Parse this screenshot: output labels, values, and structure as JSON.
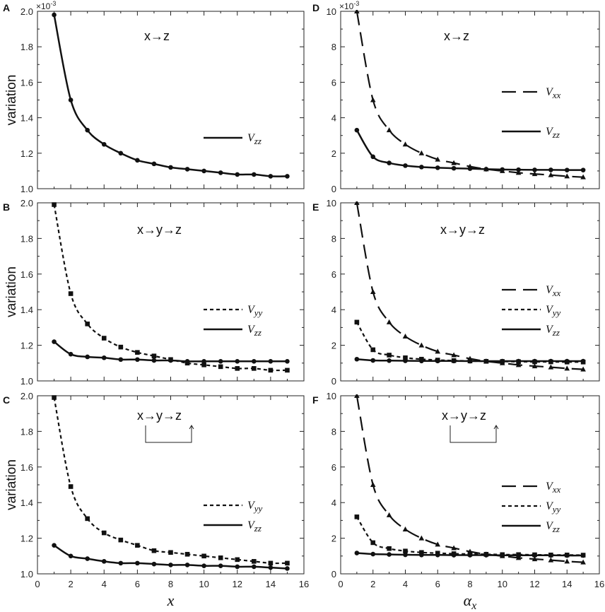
{
  "chart_data": [
    {
      "id": "A",
      "type": "line",
      "panel_label": "A",
      "xlabel": "",
      "ylabel": "variation",
      "xlim": [
        0,
        16
      ],
      "ylim": [
        1.0,
        2.0
      ],
      "xticks": [],
      "yticks": [
        1.0,
        1.2,
        1.4,
        1.6,
        1.8,
        2.0
      ],
      "ytick_labels": [
        "1.0",
        "1.2",
        "1.4",
        "1.6",
        "1.8",
        "2.0"
      ],
      "multiplier": "×10-3",
      "annotation": "x→z",
      "bracket": false,
      "x": [
        1,
        2,
        3,
        4,
        5,
        6,
        7,
        8,
        9,
        10,
        11,
        12,
        13,
        14,
        15
      ],
      "series": [
        {
          "name": "V",
          "sub": "zz",
          "style": "solid",
          "marker": "circle",
          "values": [
            1.98,
            1.5,
            1.33,
            1.25,
            1.2,
            1.16,
            1.14,
            1.12,
            1.11,
            1.1,
            1.09,
            1.08,
            1.08,
            1.07,
            1.07
          ]
        }
      ]
    },
    {
      "id": "D",
      "type": "line",
      "panel_label": "D",
      "xlabel": "",
      "ylabel": "",
      "xlim": [
        0,
        16
      ],
      "ylim": [
        0,
        10
      ],
      "xticks": [],
      "yticks": [
        0,
        2,
        4,
        6,
        8,
        10
      ],
      "ytick_labels": [
        "0",
        "2",
        "4",
        "6",
        "8",
        "10"
      ],
      "multiplier": "×10-3",
      "annotation": "x→z",
      "bracket": false,
      "x": [
        1,
        2,
        3,
        4,
        5,
        6,
        7,
        8,
        9,
        10,
        11,
        12,
        13,
        14,
        15
      ],
      "series": [
        {
          "name": "V",
          "sub": "xx",
          "style": "dashed",
          "marker": "triangle",
          "values": [
            10.0,
            5.0,
            3.3,
            2.5,
            2.0,
            1.65,
            1.45,
            1.25,
            1.1,
            1.0,
            0.9,
            0.83,
            0.77,
            0.7,
            0.65
          ]
        },
        {
          "name": "V",
          "sub": "zz",
          "style": "solid",
          "marker": "circle",
          "values": [
            3.3,
            1.8,
            1.45,
            1.3,
            1.22,
            1.18,
            1.15,
            1.13,
            1.1,
            1.08,
            1.07,
            1.06,
            1.06,
            1.05,
            1.05
          ]
        }
      ]
    },
    {
      "id": "B",
      "type": "line",
      "panel_label": "B",
      "xlabel": "",
      "ylabel": "variation",
      "xlim": [
        0,
        16
      ],
      "ylim": [
        1.0,
        2.0
      ],
      "xticks": [],
      "yticks": [
        1.0,
        1.2,
        1.4,
        1.6,
        1.8,
        2.0
      ],
      "ytick_labels": [
        "1.0",
        "1.2",
        "1.4",
        "1.6",
        "1.8",
        "2.0"
      ],
      "multiplier": "",
      "annotation": "x→y→z",
      "bracket": false,
      "x": [
        1,
        2,
        3,
        4,
        5,
        6,
        7,
        8,
        9,
        10,
        11,
        12,
        13,
        14,
        15
      ],
      "series": [
        {
          "name": "V",
          "sub": "yy",
          "style": "dotted",
          "marker": "square",
          "values": [
            1.99,
            1.49,
            1.32,
            1.24,
            1.19,
            1.16,
            1.14,
            1.12,
            1.1,
            1.09,
            1.08,
            1.07,
            1.07,
            1.06,
            1.06
          ]
        },
        {
          "name": "V",
          "sub": "zz",
          "style": "solid",
          "marker": "circle",
          "values": [
            1.22,
            1.15,
            1.135,
            1.13,
            1.12,
            1.12,
            1.115,
            1.115,
            1.11,
            1.11,
            1.11,
            1.11,
            1.11,
            1.11,
            1.11
          ]
        }
      ]
    },
    {
      "id": "E",
      "type": "line",
      "panel_label": "E",
      "xlabel": "",
      "ylabel": "",
      "xlim": [
        0,
        16
      ],
      "ylim": [
        0,
        10
      ],
      "xticks": [],
      "yticks": [
        0,
        2,
        4,
        6,
        8,
        10
      ],
      "ytick_labels": [
        "0",
        "2",
        "4",
        "6",
        "8",
        "10"
      ],
      "multiplier": "",
      "annotation": "x→y→z",
      "bracket": false,
      "x": [
        1,
        2,
        3,
        4,
        5,
        6,
        7,
        8,
        9,
        10,
        11,
        12,
        13,
        14,
        15
      ],
      "series": [
        {
          "name": "V",
          "sub": "xx",
          "style": "dashed",
          "marker": "triangle",
          "values": [
            10.0,
            5.0,
            3.3,
            2.5,
            2.0,
            1.65,
            1.45,
            1.25,
            1.1,
            1.0,
            0.9,
            0.83,
            0.77,
            0.7,
            0.65
          ]
        },
        {
          "name": "V",
          "sub": "yy",
          "style": "dotted",
          "marker": "square",
          "values": [
            3.3,
            1.75,
            1.45,
            1.3,
            1.22,
            1.17,
            1.14,
            1.12,
            1.1,
            1.09,
            1.08,
            1.07,
            1.07,
            1.06,
            1.06
          ]
        },
        {
          "name": "V",
          "sub": "zz",
          "style": "solid",
          "marker": "circle",
          "values": [
            1.22,
            1.15,
            1.14,
            1.13,
            1.12,
            1.12,
            1.12,
            1.11,
            1.11,
            1.11,
            1.11,
            1.11,
            1.11,
            1.11,
            1.11
          ]
        }
      ]
    },
    {
      "id": "C",
      "type": "line",
      "panel_label": "C",
      "xlabel": "x",
      "ylabel": "variation",
      "xlim": [
        0,
        16
      ],
      "ylim": [
        1.0,
        2.0
      ],
      "xticks": [
        0,
        2,
        4,
        6,
        8,
        10,
        12,
        14,
        16
      ],
      "yticks": [
        1.0,
        1.2,
        1.4,
        1.6,
        1.8,
        2.0
      ],
      "ytick_labels": [
        "1.0",
        "1.2",
        "1.4",
        "1.6",
        "1.8",
        "2.0"
      ],
      "multiplier": "",
      "annotation": "x→y→z",
      "bracket": true,
      "x": [
        1,
        2,
        3,
        4,
        5,
        6,
        7,
        8,
        9,
        10,
        11,
        12,
        13,
        14,
        15
      ],
      "series": [
        {
          "name": "V",
          "sub": "yy",
          "style": "dotted",
          "marker": "square",
          "values": [
            1.99,
            1.49,
            1.31,
            1.23,
            1.19,
            1.16,
            1.13,
            1.12,
            1.11,
            1.1,
            1.09,
            1.08,
            1.07,
            1.06,
            1.06
          ]
        },
        {
          "name": "V",
          "sub": "zz",
          "style": "solid",
          "marker": "circle",
          "values": [
            1.16,
            1.1,
            1.085,
            1.07,
            1.06,
            1.06,
            1.055,
            1.05,
            1.05,
            1.045,
            1.045,
            1.04,
            1.04,
            1.035,
            1.03
          ]
        }
      ]
    },
    {
      "id": "F",
      "type": "line",
      "panel_label": "F",
      "xlabel": "α",
      "xlabel_sub": "x",
      "ylabel": "",
      "xlim": [
        0,
        16
      ],
      "ylim": [
        0,
        10
      ],
      "xticks": [
        0,
        2,
        4,
        6,
        8,
        10,
        12,
        14,
        16
      ],
      "yticks": [
        0,
        2,
        4,
        6,
        8,
        10
      ],
      "ytick_labels": [
        "0",
        "2",
        "4",
        "6",
        "8",
        "10"
      ],
      "multiplier": "",
      "annotation": "x→y→z",
      "bracket": true,
      "x": [
        1,
        2,
        3,
        4,
        5,
        6,
        7,
        8,
        9,
        10,
        11,
        12,
        13,
        14,
        15
      ],
      "series": [
        {
          "name": "V",
          "sub": "xx",
          "style": "dashed",
          "marker": "triangle",
          "values": [
            10.0,
            5.0,
            3.3,
            2.5,
            2.0,
            1.65,
            1.45,
            1.25,
            1.1,
            1.0,
            0.9,
            0.83,
            0.77,
            0.7,
            0.65
          ]
        },
        {
          "name": "V",
          "sub": "yy",
          "style": "dotted",
          "marker": "square",
          "values": [
            3.2,
            1.75,
            1.42,
            1.28,
            1.2,
            1.16,
            1.13,
            1.11,
            1.1,
            1.08,
            1.08,
            1.07,
            1.06,
            1.06,
            1.05
          ]
        },
        {
          "name": "V",
          "sub": "zz",
          "style": "solid",
          "marker": "circle",
          "values": [
            1.17,
            1.11,
            1.09,
            1.07,
            1.06,
            1.06,
            1.05,
            1.05,
            1.05,
            1.04,
            1.04,
            1.04,
            1.04,
            1.03,
            1.03
          ]
        }
      ]
    }
  ]
}
